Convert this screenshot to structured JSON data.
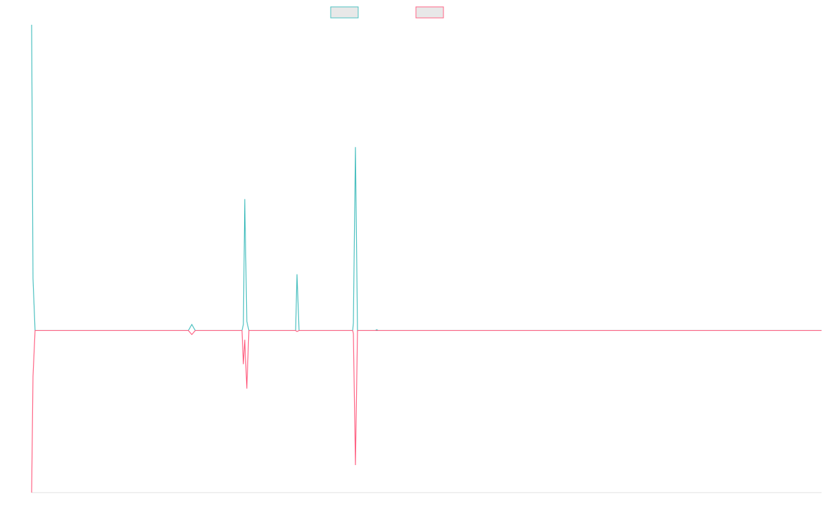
{
  "chart_data": {
    "type": "line",
    "x": [
      0,
      2,
      5,
      228,
      233,
      238,
      306,
      308,
      310,
      313,
      316,
      384,
      386,
      389,
      467,
      468,
      471,
      474,
      500,
      502,
      504,
      1149
    ],
    "series": [
      {
        "color": "#4bc0c0",
        "values": [
          100,
          17,
          0,
          0,
          2,
          0,
          0,
          2,
          43,
          3,
          0,
          0,
          18.4,
          0,
          0,
          2.5,
          60,
          0,
          0,
          0.3,
          0,
          0
        ]
      },
      {
        "color": "#ff6384",
        "values": [
          -53,
          -15,
          0,
          0,
          -1.3,
          0,
          0,
          -11,
          -3,
          -19,
          0,
          0,
          -0.3,
          0,
          0,
          -1,
          -44,
          0,
          0,
          0,
          0,
          0
        ]
      }
    ],
    "xlim": [
      0,
      1149
    ],
    "ylim": [
      -53,
      100
    ],
    "legend": "top"
  }
}
